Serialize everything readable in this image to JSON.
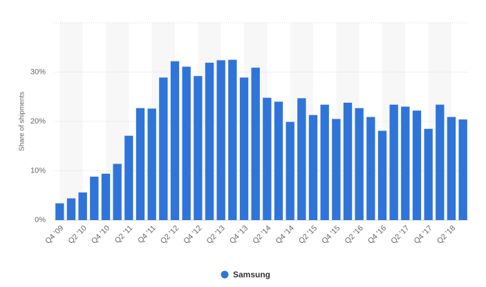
{
  "chart_data": {
    "type": "bar",
    "y_axis_label": "Share of shipments",
    "categories": [
      "Q4 '09",
      null,
      "Q2 '10",
      null,
      "Q4 '10",
      null,
      "Q2 '11",
      null,
      "Q4 '11",
      null,
      "Q2 '12",
      null,
      "Q4 '12",
      null,
      "Q2 '13",
      null,
      "Q4 '13",
      null,
      "Q2 '14",
      null,
      "Q4 '14",
      null,
      "Q2 '15",
      null,
      "Q4 '15",
      null,
      "Q2 '16",
      null,
      "Q4 '16",
      null,
      "Q2 '17",
      null,
      "Q4 '17",
      null,
      "Q2 '18",
      null
    ],
    "series": [
      {
        "name": "Samsung",
        "color": "#2f74d9",
        "values": [
          3.4,
          4.4,
          5.6,
          8.8,
          9.4,
          11.4,
          17.1,
          22.7,
          22.6,
          28.9,
          32.2,
          31.1,
          29.2,
          31.9,
          32.4,
          32.5,
          28.9,
          30.9,
          24.8,
          24.0,
          19.9,
          24.7,
          21.3,
          23.4,
          20.5,
          23.8,
          22.7,
          20.9,
          18.1,
          23.4,
          23.0,
          22.2,
          18.5,
          23.4,
          20.9,
          20.4
        ]
      }
    ],
    "ylim": [
      0,
      40
    ],
    "yticks": [
      {
        "value": 0,
        "label": "0%"
      },
      {
        "value": 10,
        "label": "10%"
      },
      {
        "value": 20,
        "label": "20%"
      },
      {
        "value": 30,
        "label": "30%"
      }
    ],
    "grid": true,
    "legend": "bottom"
  }
}
